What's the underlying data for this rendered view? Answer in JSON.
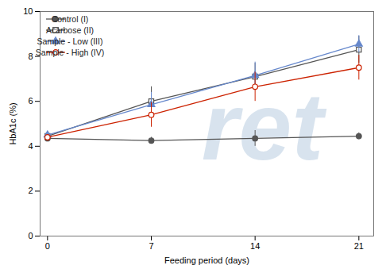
{
  "chart_data": {
    "type": "line",
    "x": [
      0,
      7,
      14,
      21
    ],
    "series": [
      {
        "name": "Control (I)",
        "color": "#555555",
        "marker": "circle",
        "line_style": "solid",
        "values": [
          4.35,
          4.25,
          4.35,
          4.45
        ],
        "yerr": [
          0.15,
          0.15,
          0.35,
          0.15
        ]
      },
      {
        "name": "Acarbose (II)",
        "color": "#555555",
        "marker": "square-open",
        "line_style": "solid",
        "values": [
          4.45,
          6.0,
          7.1,
          8.3
        ],
        "yerr": [
          0.15,
          0.65,
          0.6,
          0.6
        ]
      },
      {
        "name": "Sample - Low (III)",
        "color": "#6688cc",
        "marker": "triangle",
        "line_style": "solid",
        "values": [
          4.5,
          5.85,
          7.15,
          8.55
        ],
        "yerr": [
          0.15,
          0.55,
          0.6,
          0.38
        ]
      },
      {
        "name": "Sample - High (IV)",
        "color": "#cc2200",
        "marker": "circle-open",
        "line_style": "solid",
        "values": [
          4.4,
          5.4,
          6.65,
          7.5
        ],
        "yerr": [
          0.1,
          0.55,
          0.65,
          0.55
        ]
      }
    ],
    "xlabel": "Feeding period (days)",
    "ylabel": "HbA1c (%)",
    "xlim": [
      -0.5,
      22
    ],
    "ylim": [
      0,
      10
    ],
    "xticks": [
      0,
      7,
      14,
      21
    ],
    "yticks": [
      0,
      2,
      4,
      6,
      8,
      10
    ],
    "grid": false,
    "legend": "upper left",
    "annotations": [
      {
        "text": "ret",
        "color": "#b8cce0"
      }
    ]
  }
}
